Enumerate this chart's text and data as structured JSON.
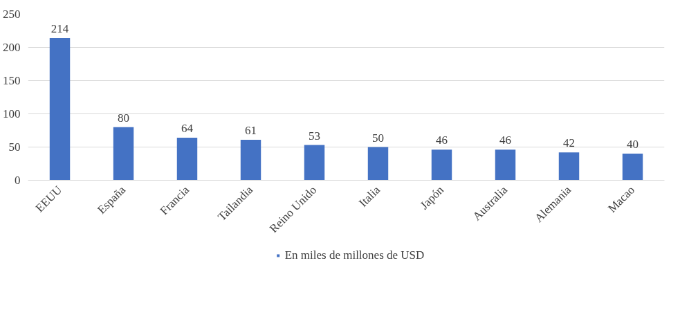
{
  "chart_data": {
    "type": "bar",
    "categories": [
      "EEUU",
      "España",
      "Francia",
      "Tailandia",
      "Reino Unido",
      "Italia",
      "Japón",
      "Australia",
      "Alemania",
      "Macao"
    ],
    "series": [
      {
        "name": "En miles de millones de USD",
        "color": "#4472c4",
        "values": [
          214,
          80,
          64,
          61,
          53,
          50,
          46,
          46,
          42,
          40
        ]
      }
    ],
    "ylim": [
      0,
      250
    ],
    "yticks": [
      0,
      50,
      100,
      150,
      200,
      250
    ],
    "grid": "y",
    "legend": "bottom",
    "data_labels": true
  }
}
